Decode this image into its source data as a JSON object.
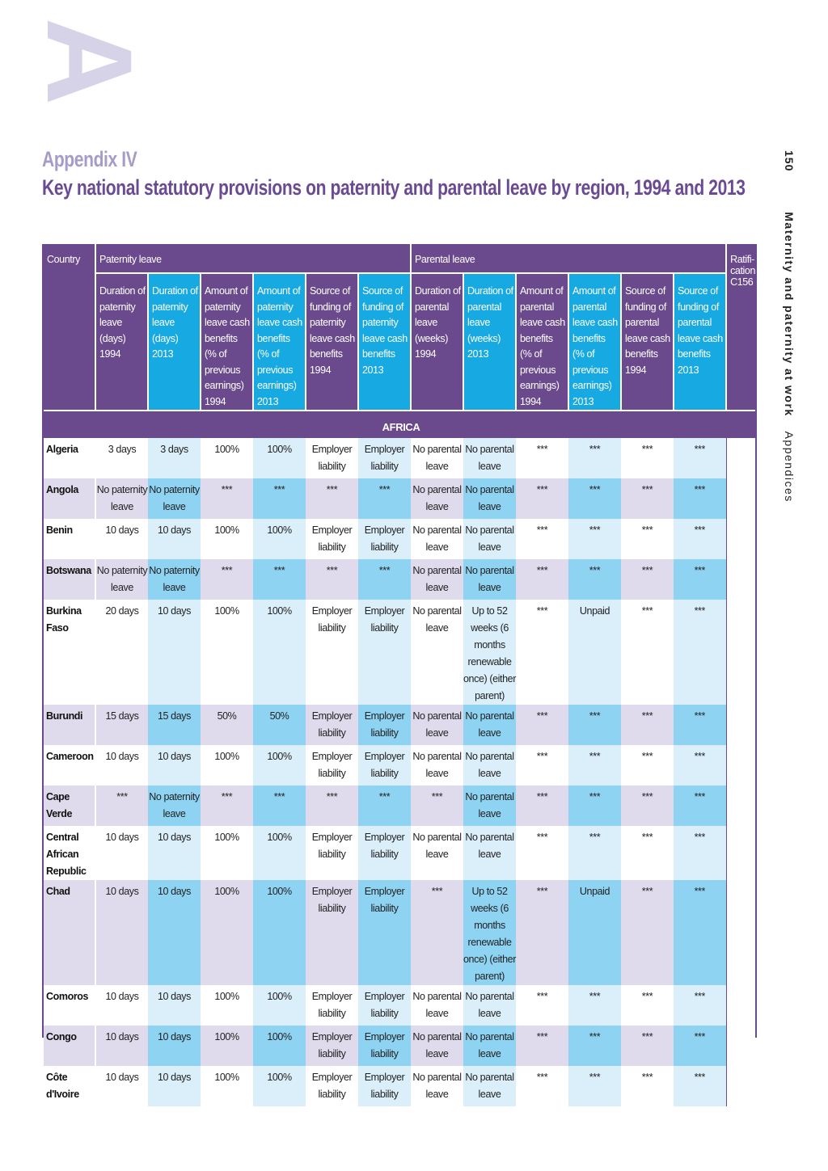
{
  "decor": {
    "section_letter": "A"
  },
  "header": {
    "appendix": "Appendix IV",
    "title": "Key national statutory provisions on paternity and parental leave by region, 1994 and 2013"
  },
  "side": {
    "page_number": "150",
    "book_title": "Maternity and paternity at work",
    "section": "Appendices"
  },
  "colors": {
    "purple": "#6a4a8c",
    "blue": "#17a9e1",
    "light_purple": "#e0dbec",
    "light_blue": "#dbeffa",
    "mid_blue": "#8fd3f3"
  },
  "table": {
    "country_header": "Country",
    "paternity_header": "Paternity leave",
    "parental_header": "Parental leave",
    "ratification_header": "Ratifi-cation C156",
    "columns": [
      "Duration of paternity leave (days) 1994",
      "Duration of paternity leave (days) 2013",
      "Amount of paternity leave cash benefits (% of previous earnings) 1994",
      "Amount of paternity leave cash benefits (% of previous earnings) 2013",
      "Source of funding of paternity leave cash benefits 1994",
      "Source of funding of paternity leave cash benefits 2013",
      "Duration of parental leave (weeks) 1994",
      "Duration of parental leave (weeks) 2013",
      "Amount of parental leave cash benefits (% of previous earnings) 1994",
      "Amount of parental leave cash benefits (% of previous earnings) 2013",
      "Source of funding of parental leave cash benefits 1994",
      "Source of funding of parental leave cash benefits 2013"
    ],
    "region": "AFRICA",
    "rows": [
      {
        "country": "Algeria",
        "cells": [
          "3 days",
          "3 days",
          "100%",
          "100%",
          "Employer liability",
          "Employer liability",
          "No parental leave",
          "No parental leave",
          "***",
          "***",
          "***",
          "***"
        ],
        "ratification": ""
      },
      {
        "country": "Angola",
        "cells": [
          "No paternity leave",
          "No paternity leave",
          "***",
          "***",
          "***",
          "***",
          "No parental leave",
          "No parental leave",
          "***",
          "***",
          "***",
          "***"
        ],
        "ratification": ""
      },
      {
        "country": "Benin",
        "cells": [
          "10 days",
          "10 days",
          "100%",
          "100%",
          "Employer liability",
          "Employer liability",
          "No parental leave",
          "No parental leave",
          "***",
          "***",
          "***",
          "***"
        ],
        "ratification": ""
      },
      {
        "country": "Botswana",
        "cells": [
          "No paternity leave",
          "No paternity leave",
          "***",
          "***",
          "***",
          "***",
          "No parental leave",
          "No parental leave",
          "***",
          "***",
          "***",
          "***"
        ],
        "ratification": ""
      },
      {
        "country": "Burkina Faso",
        "cells": [
          "20 days",
          "10 days",
          "100%",
          "100%",
          "Employer liability",
          "Employer liability",
          "No parental leave",
          "Up to 52 weeks (6 months renewable once) (either parent)",
          "***",
          "Unpaid",
          "***",
          "***"
        ],
        "ratification": ""
      },
      {
        "country": "Burundi",
        "cells": [
          "15 days",
          "15 days",
          "50%",
          "50%",
          "Employer liability",
          "Employer liability",
          "No parental leave",
          "No parental leave",
          "***",
          "***",
          "***",
          "***"
        ],
        "ratification": ""
      },
      {
        "country": "Cameroon",
        "cells": [
          "10 days",
          "10 days",
          "100%",
          "100%",
          "Employer liability",
          "Employer liability",
          "No parental leave",
          "No parental leave",
          "***",
          "***",
          "***",
          "***"
        ],
        "ratification": ""
      },
      {
        "country": "Cape Verde",
        "cells": [
          "***",
          "No paternity leave",
          "***",
          "***",
          "***",
          "***",
          "***",
          "No parental leave",
          "***",
          "***",
          "***",
          "***"
        ],
        "ratification": ""
      },
      {
        "country": "Central African Republic",
        "cells": [
          "10 days",
          "10 days",
          "100%",
          "100%",
          "Employer liability",
          "Employer liability",
          "No parental leave",
          "No parental leave",
          "***",
          "***",
          "***",
          "***"
        ],
        "ratification": ""
      },
      {
        "country": "Chad",
        "cells": [
          "10 days",
          "10 days",
          "100%",
          "100%",
          "Employer liability",
          "Employer liability",
          "***",
          "Up to 52 weeks (6 months renewable once) (either parent)",
          "***",
          "Unpaid",
          "***",
          "***"
        ],
        "ratification": ""
      },
      {
        "country": "Comoros",
        "cells": [
          "10 days",
          "10 days",
          "100%",
          "100%",
          "Employer liability",
          "Employer liability",
          "No parental leave",
          "No parental leave",
          "***",
          "***",
          "***",
          "***"
        ],
        "ratification": ""
      },
      {
        "country": "Congo",
        "cells": [
          "10 days",
          "10 days",
          "100%",
          "100%",
          "Employer liability",
          "Employer liability",
          "No parental leave",
          "No parental leave",
          "***",
          "***",
          "***",
          "***"
        ],
        "ratification": ""
      },
      {
        "country": "Côte d'Ivoire",
        "cells": [
          "10 days",
          "10 days",
          "100%",
          "100%",
          "Employer liability",
          "Employer liability",
          "No parental leave",
          "No parental leave",
          "***",
          "***",
          "***",
          "***"
        ],
        "ratification": ""
      }
    ]
  }
}
